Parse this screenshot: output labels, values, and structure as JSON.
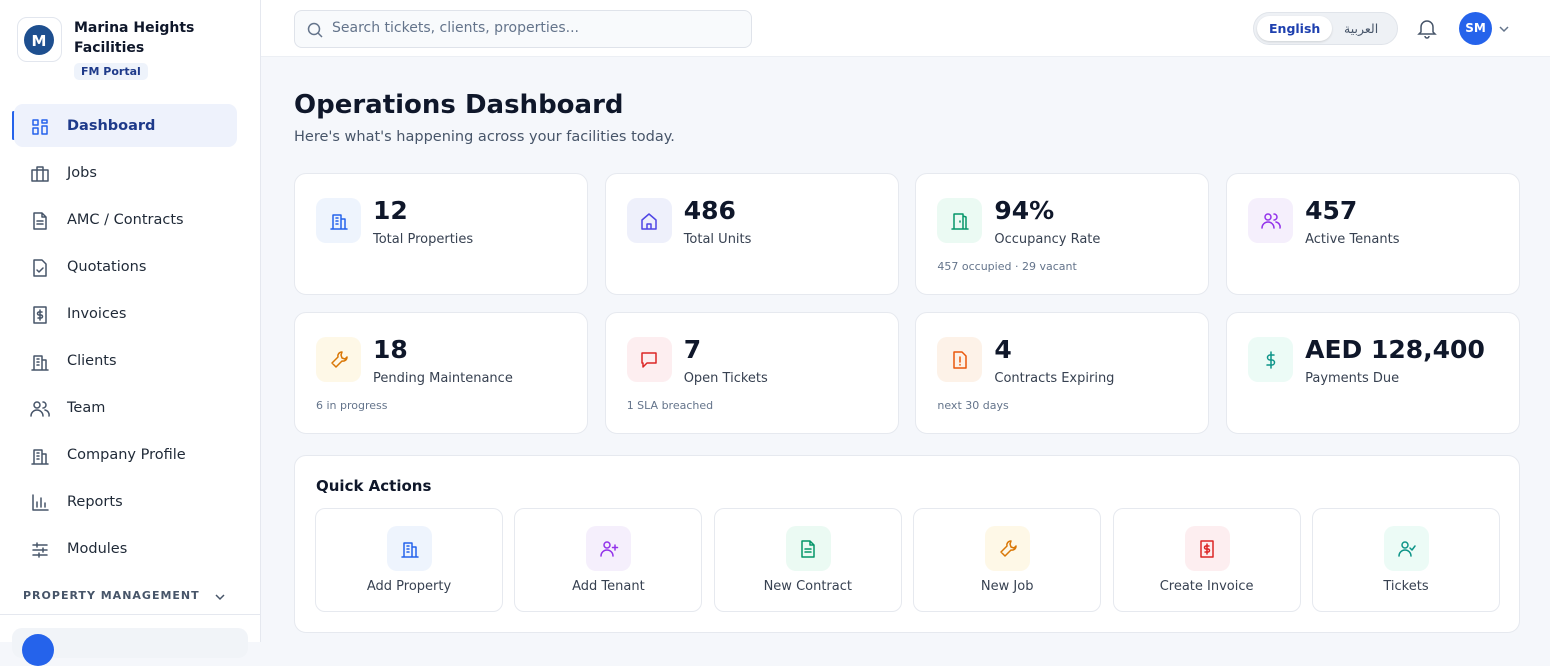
{
  "brand": {
    "name": "Marina Heights Facilities",
    "badge": "FM Portal"
  },
  "search": {
    "placeholder": "Search tickets, clients, properties..."
  },
  "languages": [
    "English",
    "العربية"
  ],
  "user": {
    "initials": "SM"
  },
  "nav": [
    "Dashboard",
    "Jobs",
    "AMC / Contracts",
    "Quotations",
    "Invoices",
    "Clients",
    "Team",
    "Company Profile",
    "Reports",
    "Modules"
  ],
  "nav_section": "PROPERTY MANAGEMENT",
  "page": {
    "title": "Operations Dashboard",
    "subtitle": "Here's what's happening across your facilities today."
  },
  "stats": [
    {
      "value": "12",
      "label": "Total Properties"
    },
    {
      "value": "486",
      "label": "Total Units"
    },
    {
      "value": "94%",
      "label": "Occupancy Rate",
      "note": "457 occupied · 29 vacant"
    },
    {
      "value": "457",
      "label": "Active Tenants"
    },
    {
      "value": "18",
      "label": "Pending Maintenance",
      "note": "6 in progress"
    },
    {
      "value": "7",
      "label": "Open Tickets",
      "note": "1 SLA breached"
    },
    {
      "value": "4",
      "label": "Contracts Expiring",
      "note": "next 30 days"
    },
    {
      "value": "AED 128,400",
      "label": "Payments Due"
    }
  ],
  "quick_actions": {
    "title": "Quick Actions",
    "items": [
      "Add Property",
      "Add Tenant",
      "New Contract",
      "New Job",
      "Create Invoice",
      "Tickets"
    ]
  }
}
